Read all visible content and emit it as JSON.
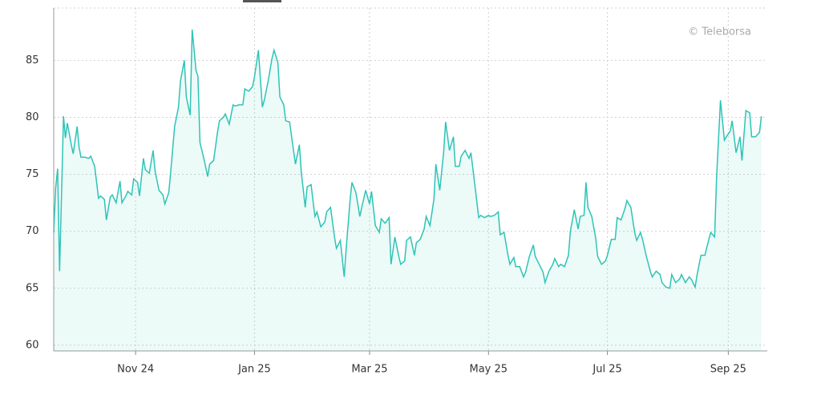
{
  "chart_data": {
    "type": "line",
    "watermark": "© Teleborsa",
    "x": [
      0,
      1,
      2,
      3,
      5,
      6,
      7,
      9,
      10,
      12,
      13,
      14,
      16,
      18,
      19,
      21,
      23,
      24,
      26,
      27,
      29,
      30,
      32,
      34,
      35,
      37,
      38,
      40,
      41,
      43,
      44,
      46,
      47,
      49,
      51,
      52,
      54,
      56,
      57,
      59,
      60,
      62,
      64,
      65,
      67,
      68,
      70,
      71,
      73,
      74,
      75,
      77,
      79,
      80,
      82,
      84,
      85,
      87,
      88,
      90,
      92,
      93,
      95,
      97,
      98,
      100,
      102,
      103,
      105,
      107,
      108,
      110,
      112,
      113,
      115,
      116,
      118,
      119,
      121,
      122,
      124,
      126,
      127,
      129,
      130,
      132,
      134,
      135,
      137,
      139,
      140,
      142,
      144,
      145,
      147,
      149,
      150,
      152,
      153,
      155,
      157,
      158,
      160,
      162,
      163,
      165,
      167,
      168,
      170,
      172,
      173,
      175,
      177,
      178,
      180,
      181,
      183,
      185,
      186,
      188,
      190,
      191,
      193,
      195,
      196,
      198,
      200,
      201,
      203,
      205,
      206,
      208,
      209,
      211,
      213,
      214,
      216,
      218,
      219,
      221,
      223,
      224,
      226,
      228,
      229,
      231,
      233,
      234,
      236,
      237,
      239,
      241,
      242,
      244,
      246,
      247,
      249,
      251,
      252,
      254,
      256,
      257,
      259,
      260,
      262,
      264,
      265,
      267,
      269,
      270,
      272,
      273,
      274,
      276,
      278,
      279,
      281,
      283,
      284,
      286,
      288,
      289,
      291,
      293,
      294,
      296,
      298,
      299,
      301,
      302,
      304,
      306,
      307,
      309,
      311,
      312,
      314,
      316,
      317,
      319,
      321,
      322,
      324,
      326,
      327,
      329,
      330,
      332,
      334,
      335,
      337,
      339,
      340,
      342,
      344,
      345,
      347,
      348,
      350,
      352,
      353,
      355,
      357,
      358,
      360,
      362,
      363
    ],
    "series": [
      {
        "color": "#2ec4b6",
        "values": [
          69.9,
          73.8,
          75.5,
          66.5,
          80.1,
          78.2,
          79.5,
          77.6,
          76.8,
          79.2,
          77.4,
          76.5,
          76.5,
          76.4,
          76.6,
          75.7,
          72.9,
          73.1,
          72.8,
          71.0,
          73.0,
          73.2,
          72.5,
          74.4,
          72.5,
          73.1,
          73.5,
          73.2,
          74.6,
          74.3,
          73.1,
          76.4,
          75.4,
          75.1,
          77.1,
          75.3,
          73.6,
          73.2,
          72.4,
          73.4,
          75.2,
          79.2,
          80.9,
          83.2,
          85.0,
          81.8,
          80.2,
          87.7,
          84.1,
          83.6,
          77.8,
          76.4,
          74.8,
          75.9,
          76.2,
          78.7,
          79.7,
          80.0,
          80.3,
          79.4,
          81.1,
          81.0,
          81.1,
          81.1,
          82.5,
          82.3,
          82.7,
          83.6,
          85.9,
          80.9,
          81.5,
          83.2,
          85.2,
          85.9,
          84.8,
          81.8,
          81.1,
          79.7,
          79.6,
          78.3,
          75.9,
          77.6,
          75.2,
          72.1,
          73.9,
          74.1,
          71.3,
          71.7,
          70.4,
          70.8,
          71.7,
          72.1,
          69.5,
          68.5,
          69.2,
          66.0,
          68.5,
          72.7,
          74.3,
          73.4,
          71.3,
          72.1,
          73.6,
          72.4,
          73.5,
          70.5,
          69.9,
          71.1,
          70.7,
          71.2,
          67.1,
          69.5,
          67.8,
          67.1,
          67.4,
          69.2,
          69.5,
          67.9,
          69.0,
          69.3,
          70.2,
          71.3,
          70.5,
          72.8,
          75.9,
          73.6,
          76.9,
          79.6,
          77.1,
          78.3,
          75.7,
          75.7,
          76.6,
          77.1,
          76.4,
          76.9,
          74.1,
          71.2,
          71.4,
          71.2,
          71.4,
          71.3,
          71.4,
          71.7,
          69.7,
          69.9,
          67.9,
          67.1,
          67.7,
          66.9,
          66.9,
          66.0,
          66.4,
          67.8,
          68.8,
          67.8,
          67.1,
          66.4,
          65.5,
          66.5,
          67.1,
          67.6,
          66.9,
          67.1,
          66.9,
          67.9,
          70.0,
          71.9,
          70.2,
          71.3,
          71.4,
          74.3,
          72.1,
          71.3,
          69.4,
          67.8,
          67.1,
          67.4,
          67.9,
          69.3,
          69.3,
          71.2,
          71.0,
          72.0,
          72.7,
          72.1,
          69.9,
          69.2,
          69.9,
          69.3,
          67.8,
          66.5,
          66.0,
          66.5,
          66.2,
          65.5,
          65.1,
          65.0,
          66.2,
          65.5,
          65.8,
          66.2,
          65.5,
          66.0,
          65.8,
          65.1,
          66.2,
          67.9,
          67.9,
          68.6,
          69.9,
          69.5,
          74.8,
          81.5,
          78.0,
          78.3,
          78.8,
          79.7,
          76.9,
          78.3,
          76.2,
          80.6,
          80.4,
          78.3,
          78.3,
          78.7,
          80.1
        ]
      }
    ],
    "xlim": [
      0,
      366
    ],
    "xticks": [
      {
        "value": 42,
        "label": "Nov 24"
      },
      {
        "value": 103,
        "label": "Jan 25"
      },
      {
        "value": 162,
        "label": "Mar 25"
      },
      {
        "value": 223,
        "label": "May 25"
      },
      {
        "value": 284,
        "label": "Jul 25"
      },
      {
        "value": 346,
        "label": "Sep 25"
      }
    ],
    "ylim": [
      59.5,
      89.6
    ],
    "yticks": [
      60,
      65,
      70,
      75,
      80,
      85
    ],
    "grid": true
  }
}
